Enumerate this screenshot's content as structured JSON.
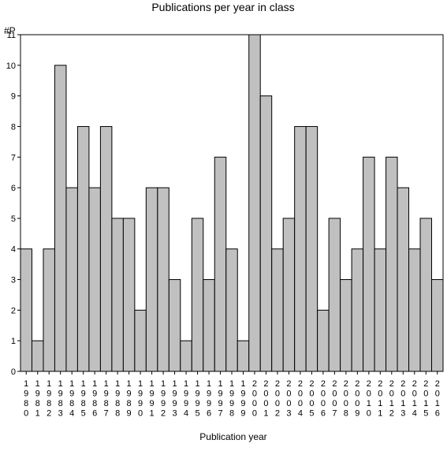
{
  "chart_data": {
    "type": "bar",
    "title": "Publications per year in class",
    "ylabel": "#P",
    "xlabel": "Publication year",
    "ylim": [
      0,
      11
    ],
    "yticks": [
      0,
      1,
      2,
      3,
      4,
      5,
      6,
      7,
      8,
      9,
      10,
      11
    ],
    "grid": false,
    "categories": [
      "1980",
      "1981",
      "1982",
      "1983",
      "1984",
      "1985",
      "1986",
      "1987",
      "1988",
      "1989",
      "1990",
      "1991",
      "1992",
      "1993",
      "1994",
      "1995",
      "1996",
      "1997",
      "1998",
      "1999",
      "2000",
      "2001",
      "2002",
      "2003",
      "2004",
      "2005",
      "2006",
      "2007",
      "2008",
      "2009",
      "2010",
      "2011",
      "2012",
      "2013",
      "2014",
      "2015",
      "2016"
    ],
    "values": [
      4,
      1,
      4,
      10,
      6,
      8,
      6,
      8,
      5,
      5,
      2,
      6,
      6,
      3,
      1,
      5,
      3,
      7,
      4,
      1,
      11,
      9,
      4,
      5,
      8,
      8,
      2,
      5,
      3,
      4,
      7,
      4,
      7,
      6,
      4,
      5,
      3
    ],
    "colors": {
      "bar_fill": "#c0c0c0",
      "bar_stroke": "#000000",
      "axis": "#000000"
    }
  }
}
